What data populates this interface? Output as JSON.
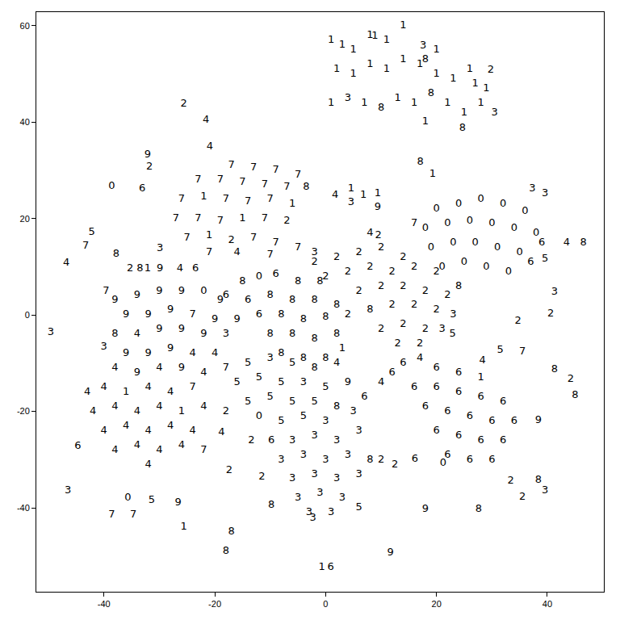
{
  "chart_data": {
    "type": "scatter",
    "marker": "text",
    "color": "#000000",
    "grid": false,
    "xlim": [
      -52.2,
      50.2
    ],
    "xticks": [
      -40,
      -20,
      0,
      20,
      40
    ],
    "ylim": [
      -57.4,
      62.8
    ],
    "yticks": [
      -40,
      -20,
      0,
      20,
      40,
      60
    ],
    "points": [
      [
        1,
        57,
        "1"
      ],
      [
        3,
        56,
        "1"
      ],
      [
        5,
        55,
        "1"
      ],
      [
        8,
        58,
        "1"
      ],
      [
        11,
        57,
        "1"
      ],
      [
        14,
        60,
        "1"
      ],
      [
        2,
        51,
        "1"
      ],
      [
        5,
        50,
        "1"
      ],
      [
        8,
        52,
        "1"
      ],
      [
        11,
        51,
        "1"
      ],
      [
        14,
        53,
        "1"
      ],
      [
        17,
        52,
        "1"
      ],
      [
        20,
        50,
        "1"
      ],
      [
        23,
        49,
        "1"
      ],
      [
        26,
        51,
        "1"
      ],
      [
        29,
        47,
        "1"
      ],
      [
        1,
        44,
        "1"
      ],
      [
        4,
        45,
        "3"
      ],
      [
        7,
        44,
        "1"
      ],
      [
        10,
        43,
        "8"
      ],
      [
        13,
        45,
        "1"
      ],
      [
        16,
        44,
        "1"
      ],
      [
        19,
        46,
        "8"
      ],
      [
        22,
        44,
        "1"
      ],
      [
        25,
        42,
        "1"
      ],
      [
        28,
        44,
        "1"
      ],
      [
        18,
        40,
        "1"
      ],
      [
        20,
        55,
        "1"
      ],
      [
        27,
        48,
        "1"
      ],
      [
        8.9,
        57.8,
        "1"
      ],
      [
        17.6,
        55.8,
        "3"
      ],
      [
        18,
        53,
        "8"
      ],
      [
        29.8,
        50.8,
        "2"
      ],
      [
        30.5,
        42,
        "3"
      ],
      [
        24.7,
        38.7,
        "8"
      ],
      [
        -25.6,
        43.7,
        "2"
      ],
      [
        -21.6,
        40.4,
        "4"
      ],
      [
        -20.9,
        34.9,
        "4"
      ],
      [
        -32.1,
        33.2,
        "9"
      ],
      [
        -31.8,
        30.7,
        "2"
      ],
      [
        -38.6,
        26.6,
        "0"
      ],
      [
        -33.1,
        26.2,
        "6"
      ],
      [
        17.1,
        31.7,
        "8"
      ],
      [
        19.3,
        29.2,
        "1"
      ],
      [
        1.7,
        24.9,
        "4"
      ],
      [
        4.6,
        26.2,
        "1"
      ],
      [
        4.6,
        23.3,
        "3"
      ],
      [
        6.8,
        24.9,
        "1"
      ],
      [
        9.4,
        25.2,
        "1"
      ],
      [
        9.4,
        22.4,
        "9"
      ],
      [
        37.3,
        26.2,
        "3"
      ],
      [
        39.6,
        25.1,
        "3"
      ],
      [
        -42.2,
        17.1,
        "5"
      ],
      [
        -43.3,
        14.3,
        "7"
      ],
      [
        -29.9,
        13.8,
        "3"
      ],
      [
        -37.8,
        12.6,
        "8"
      ],
      [
        -35.3,
        9.6,
        "2"
      ],
      [
        -33.5,
        9.6,
        "8"
      ],
      [
        -32.1,
        9.6,
        "1"
      ],
      [
        -29.9,
        9.6,
        "9"
      ],
      [
        -26.3,
        9.6,
        "4"
      ],
      [
        -23.5,
        9.6,
        "6"
      ],
      [
        -46.8,
        10.8,
        "4"
      ],
      [
        -39.6,
        5,
        "7"
      ],
      [
        -49.6,
        -3.7,
        "3"
      ],
      [
        -40,
        -6.6,
        "3"
      ],
      [
        43.5,
        15,
        "4"
      ],
      [
        46.5,
        15,
        "8"
      ],
      [
        39.6,
        11.6,
        "5"
      ],
      [
        41.3,
        4.7,
        "3"
      ],
      [
        34.7,
        -1.2,
        "2"
      ],
      [
        40.6,
        0.3,
        "2"
      ],
      [
        22.9,
        -4,
        "5"
      ],
      [
        28.3,
        -9.5,
        "4"
      ],
      [
        31.5,
        -7.3,
        "5"
      ],
      [
        35.5,
        -7.6,
        "7"
      ],
      [
        41.3,
        -11.3,
        "8"
      ],
      [
        44.2,
        -13.3,
        "2"
      ],
      [
        45,
        -16.6,
        "8"
      ],
      [
        38.4,
        -21.9,
        "9"
      ],
      [
        33.4,
        -34.4,
        "2"
      ],
      [
        38.4,
        -34.2,
        "8"
      ],
      [
        39.6,
        -36.4,
        "3"
      ],
      [
        35.5,
        -37.7,
        "2"
      ],
      [
        16.1,
        -29.9,
        "6"
      ],
      [
        21.2,
        -30.7,
        "0"
      ],
      [
        18,
        -40.2,
        "9"
      ],
      [
        27.6,
        -40.2,
        "8"
      ],
      [
        11.7,
        -49.3,
        "9"
      ],
      [
        -0.7,
        -52.3,
        "1"
      ],
      [
        0.9,
        -52.3,
        "6"
      ],
      [
        -2.3,
        -42.2,
        "3"
      ],
      [
        -9.8,
        -39.5,
        "8"
      ],
      [
        -18,
        -49,
        "8"
      ],
      [
        -17,
        -44.9,
        "8"
      ],
      [
        -25.6,
        -44,
        "1"
      ],
      [
        -17.4,
        -32.2,
        "2"
      ],
      [
        -11.5,
        -33.6,
        "2"
      ],
      [
        -26.6,
        -39,
        "9"
      ],
      [
        -31.4,
        -38.5,
        "5"
      ],
      [
        -35.7,
        -37.9,
        "0"
      ],
      [
        -38.6,
        -41.5,
        "7"
      ],
      [
        -34.7,
        -41.5,
        "7"
      ],
      [
        -46.5,
        -36.5,
        "3"
      ],
      [
        -44.7,
        -27.2,
        "6"
      ],
      [
        -18.8,
        -24.4,
        "4"
      ],
      [
        -13.4,
        -26.1,
        "2"
      ],
      [
        -9.8,
        -26.1,
        "6"
      ],
      [
        12.5,
        -31.1,
        "2"
      ],
      [
        -17,
        31,
        "7"
      ],
      [
        -13,
        30.5,
        "7"
      ],
      [
        -9,
        30,
        "7"
      ],
      [
        -5,
        29,
        "7"
      ],
      [
        -23,
        28,
        "7"
      ],
      [
        -19,
        28,
        "7"
      ],
      [
        -15,
        27.5,
        "7"
      ],
      [
        -11,
        27,
        "7"
      ],
      [
        -7,
        26.5,
        "7"
      ],
      [
        -3.5,
        26.5,
        "8"
      ],
      [
        -26,
        24,
        "7"
      ],
      [
        -22,
        24.5,
        "1"
      ],
      [
        -18,
        24,
        "7"
      ],
      [
        -14,
        23.5,
        "7"
      ],
      [
        -10,
        24,
        "7"
      ],
      [
        -6,
        23,
        "1"
      ],
      [
        -27,
        20,
        "7"
      ],
      [
        -23,
        20,
        "7"
      ],
      [
        -19,
        19.5,
        "7"
      ],
      [
        -15,
        20,
        "1"
      ],
      [
        -11,
        20,
        "7"
      ],
      [
        -7,
        19.5,
        "2"
      ],
      [
        -25,
        16,
        "7"
      ],
      [
        -21,
        16.5,
        "1"
      ],
      [
        -17,
        15.5,
        "2"
      ],
      [
        -13,
        16,
        "7"
      ],
      [
        -9,
        15,
        "7"
      ],
      [
        -5,
        14,
        "7"
      ],
      [
        -21,
        13,
        "7"
      ],
      [
        -16,
        13,
        "4"
      ],
      [
        -10,
        12.5,
        "7"
      ],
      [
        -2,
        13,
        "3"
      ],
      [
        20,
        22,
        "0"
      ],
      [
        24,
        23,
        "0"
      ],
      [
        28,
        24,
        "0"
      ],
      [
        32,
        23,
        "0"
      ],
      [
        36,
        21.5,
        "0"
      ],
      [
        18,
        18,
        "0"
      ],
      [
        22,
        19,
        "0"
      ],
      [
        26,
        19.5,
        "0"
      ],
      [
        30,
        19,
        "0"
      ],
      [
        34,
        18,
        "0"
      ],
      [
        38,
        17,
        "0"
      ],
      [
        19,
        14,
        "0"
      ],
      [
        23,
        15,
        "0"
      ],
      [
        27,
        15,
        "0"
      ],
      [
        31,
        14,
        "0"
      ],
      [
        35,
        13,
        "0"
      ],
      [
        21,
        10,
        "0"
      ],
      [
        25,
        11,
        "0"
      ],
      [
        29,
        10,
        "0"
      ],
      [
        33,
        9,
        "0"
      ],
      [
        16,
        19,
        "7"
      ],
      [
        37,
        11,
        "6"
      ],
      [
        39,
        15,
        "6"
      ],
      [
        2,
        12,
        "2"
      ],
      [
        6,
        13,
        "2"
      ],
      [
        10,
        14,
        "2"
      ],
      [
        14,
        12,
        "2"
      ],
      [
        8,
        17,
        "4"
      ],
      [
        9.5,
        16.5,
        "2"
      ],
      [
        -2,
        11,
        "2"
      ],
      [
        0,
        8,
        "2"
      ],
      [
        4,
        9,
        "2"
      ],
      [
        8,
        10,
        "2"
      ],
      [
        12,
        9,
        "2"
      ],
      [
        16,
        10,
        "2"
      ],
      [
        20,
        9,
        "2"
      ],
      [
        6,
        5,
        "2"
      ],
      [
        10,
        6,
        "2"
      ],
      [
        14,
        6,
        "2"
      ],
      [
        18,
        5,
        "2"
      ],
      [
        22,
        4,
        "2"
      ],
      [
        24,
        6,
        "8"
      ],
      [
        8,
        1,
        "8"
      ],
      [
        12,
        2,
        "2"
      ],
      [
        16,
        2,
        "2"
      ],
      [
        20,
        1,
        "2"
      ],
      [
        23,
        0,
        "3"
      ],
      [
        10,
        -3,
        "2"
      ],
      [
        14,
        -2,
        "2"
      ],
      [
        18,
        -3,
        "2"
      ],
      [
        21,
        -3,
        "3"
      ],
      [
        13,
        -6,
        "2"
      ],
      [
        17,
        -6,
        "2"
      ],
      [
        -15,
        7,
        "8"
      ],
      [
        -12,
        8,
        "0"
      ],
      [
        -9,
        8.5,
        "6"
      ],
      [
        -5,
        7,
        "8"
      ],
      [
        -1,
        7,
        "8"
      ],
      [
        -14,
        3,
        "6"
      ],
      [
        -10,
        4,
        "8"
      ],
      [
        -6,
        3,
        "8"
      ],
      [
        -2,
        3,
        "8"
      ],
      [
        2,
        2,
        "8"
      ],
      [
        -16,
        -1,
        "9"
      ],
      [
        -12,
        0,
        "6"
      ],
      [
        -8,
        0,
        "8"
      ],
      [
        -4,
        -1,
        "8"
      ],
      [
        0,
        -0.5,
        "8"
      ],
      [
        4,
        0,
        "2"
      ],
      [
        -10,
        -4,
        "8"
      ],
      [
        -6,
        -4,
        "8"
      ],
      [
        -2,
        -5,
        "8"
      ],
      [
        2,
        -4,
        "8"
      ],
      [
        -8,
        -8,
        "8"
      ],
      [
        -4,
        -9,
        "8"
      ],
      [
        0,
        -9,
        "8"
      ],
      [
        3,
        -7,
        "1"
      ],
      [
        -18,
        4,
        "6"
      ],
      [
        -38,
        3,
        "9"
      ],
      [
        -34,
        4,
        "9"
      ],
      [
        -30,
        5,
        "9"
      ],
      [
        -26,
        5,
        "9"
      ],
      [
        -22,
        5,
        "0"
      ],
      [
        -19,
        3,
        "9"
      ],
      [
        -36,
        0,
        "9"
      ],
      [
        -32,
        0,
        "9"
      ],
      [
        -28,
        1,
        "9"
      ],
      [
        -24,
        0,
        "7"
      ],
      [
        -20,
        -1,
        "9"
      ],
      [
        -38,
        -4,
        "8"
      ],
      [
        -34,
        -4,
        "4"
      ],
      [
        -30,
        -3,
        "9"
      ],
      [
        -26,
        -3,
        "9"
      ],
      [
        -22,
        -4,
        "9"
      ],
      [
        -18,
        -4,
        "3"
      ],
      [
        -36,
        -8,
        "9"
      ],
      [
        -32,
        -8,
        "9"
      ],
      [
        -28,
        -7,
        "9"
      ],
      [
        -24,
        -8,
        "4"
      ],
      [
        -20,
        -8,
        "4"
      ],
      [
        -38,
        -11,
        "4"
      ],
      [
        -34,
        -12,
        "9"
      ],
      [
        -30,
        -11,
        "4"
      ],
      [
        -26,
        -11,
        "9"
      ],
      [
        -22,
        -12,
        "4"
      ],
      [
        -18,
        -11,
        "7"
      ],
      [
        -43,
        -16,
        "4"
      ],
      [
        -40,
        -15,
        "4"
      ],
      [
        -36,
        -16,
        "1"
      ],
      [
        -32,
        -15,
        "4"
      ],
      [
        -28,
        -16,
        "4"
      ],
      [
        -24,
        -15,
        "7"
      ],
      [
        -42,
        -20,
        "4"
      ],
      [
        -38,
        -19,
        "4"
      ],
      [
        -34,
        -20,
        "4"
      ],
      [
        -30,
        -19,
        "4"
      ],
      [
        -26,
        -20,
        "1"
      ],
      [
        -22,
        -19,
        "4"
      ],
      [
        -40,
        -24,
        "4"
      ],
      [
        -36,
        -23,
        "4"
      ],
      [
        -32,
        -24,
        "4"
      ],
      [
        -28,
        -23,
        "4"
      ],
      [
        -24,
        -24,
        "4"
      ],
      [
        -38,
        -28,
        "4"
      ],
      [
        -34,
        -27,
        "4"
      ],
      [
        -30,
        -28,
        "4"
      ],
      [
        -26,
        -27,
        "4"
      ],
      [
        -22,
        -28,
        "7"
      ],
      [
        -32,
        -31,
        "4"
      ],
      [
        -14,
        -10,
        "5"
      ],
      [
        -10,
        -9,
        "3"
      ],
      [
        -6,
        -10,
        "5"
      ],
      [
        -2,
        -11,
        "8"
      ],
      [
        2,
        -10,
        "4"
      ],
      [
        -16,
        -14,
        "5"
      ],
      [
        -12,
        -13,
        "5"
      ],
      [
        -8,
        -14,
        "5"
      ],
      [
        -4,
        -14,
        "3"
      ],
      [
        0,
        -15,
        "5"
      ],
      [
        4,
        -14,
        "9"
      ],
      [
        -14,
        -18,
        "5"
      ],
      [
        -10,
        -17,
        "5"
      ],
      [
        -6,
        -18,
        "5"
      ],
      [
        -2,
        -18,
        "5"
      ],
      [
        2,
        -19,
        "8"
      ],
      [
        -12,
        -21,
        "0"
      ],
      [
        -8,
        -22,
        "5"
      ],
      [
        -4,
        -21,
        "5"
      ],
      [
        0,
        -22,
        "3"
      ],
      [
        5,
        -20,
        "3"
      ],
      [
        7,
        -17,
        "6"
      ],
      [
        -18,
        -20,
        "2"
      ],
      [
        -6,
        -26,
        "3"
      ],
      [
        -2,
        -25,
        "3"
      ],
      [
        2,
        -26,
        "3"
      ],
      [
        6,
        -24,
        "3"
      ],
      [
        -8,
        -30,
        "3"
      ],
      [
        -4,
        -29,
        "3"
      ],
      [
        0,
        -30,
        "3"
      ],
      [
        4,
        -29,
        "3"
      ],
      [
        8,
        -30,
        "8"
      ],
      [
        -6,
        -34,
        "3"
      ],
      [
        -2,
        -33,
        "3"
      ],
      [
        2,
        -34,
        "3"
      ],
      [
        6,
        -33,
        "3"
      ],
      [
        -5,
        -38,
        "3"
      ],
      [
        -1,
        -37,
        "3"
      ],
      [
        3,
        -38,
        "3"
      ],
      [
        6,
        -40,
        "5"
      ],
      [
        1,
        -41,
        "3"
      ],
      [
        -3,
        -41,
        "3"
      ],
      [
        10,
        -30,
        "2"
      ],
      [
        14,
        -10,
        "6"
      ],
      [
        17,
        -9,
        "4"
      ],
      [
        20,
        -11,
        "6"
      ],
      [
        24,
        -12,
        "6"
      ],
      [
        28,
        -13,
        "1"
      ],
      [
        16,
        -15,
        "6"
      ],
      [
        20,
        -15,
        "6"
      ],
      [
        24,
        -16,
        "6"
      ],
      [
        28,
        -17,
        "6"
      ],
      [
        32,
        -18,
        "6"
      ],
      [
        18,
        -19,
        "6"
      ],
      [
        22,
        -20,
        "6"
      ],
      [
        26,
        -21,
        "6"
      ],
      [
        30,
        -22,
        "6"
      ],
      [
        34,
        -22,
        "6"
      ],
      [
        20,
        -24,
        "6"
      ],
      [
        24,
        -25,
        "6"
      ],
      [
        28,
        -26,
        "6"
      ],
      [
        32,
        -26,
        "6"
      ],
      [
        22,
        -29,
        "6"
      ],
      [
        26,
        -30,
        "6"
      ],
      [
        30,
        -30,
        "6"
      ],
      [
        12,
        -12,
        "6"
      ],
      [
        10,
        -14,
        "4"
      ]
    ]
  }
}
